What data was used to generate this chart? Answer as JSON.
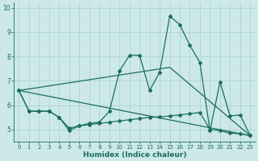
{
  "xlabel": "Humidex (Indice chaleur)",
  "xlim": [
    -0.5,
    23.5
  ],
  "ylim": [
    4.5,
    10.2
  ],
  "yticks": [
    5,
    6,
    7,
    8,
    9,
    10
  ],
  "xticks": [
    0,
    1,
    2,
    3,
    4,
    5,
    6,
    7,
    8,
    9,
    10,
    11,
    12,
    13,
    14,
    15,
    16,
    17,
    18,
    19,
    20,
    21,
    22,
    23
  ],
  "bg_color": "#cce8e8",
  "line_color": "#1a6e64",
  "grid_color": "#aacfcf",
  "line1_x": [
    0,
    1,
    2,
    3,
    4,
    5,
    6,
    7,
    8,
    9,
    10,
    11,
    12,
    13,
    14,
    15,
    16,
    17,
    18,
    19,
    20,
    21,
    22,
    23
  ],
  "line1_y": [
    6.6,
    5.75,
    5.75,
    5.75,
    5.5,
    4.95,
    5.15,
    5.25,
    5.3,
    5.75,
    7.4,
    8.05,
    8.05,
    6.6,
    7.35,
    9.65,
    9.3,
    8.45,
    7.75,
    4.95,
    6.95,
    5.55,
    5.6,
    4.75
  ],
  "line2_x": [
    0,
    1,
    2,
    3,
    4,
    5,
    6,
    7,
    8,
    9,
    10,
    11,
    12,
    13,
    14,
    15,
    16,
    17,
    18,
    19,
    20,
    21,
    22,
    23
  ],
  "line2_y": [
    6.6,
    5.75,
    5.75,
    5.75,
    5.5,
    5.05,
    5.15,
    5.2,
    5.25,
    5.3,
    5.35,
    5.4,
    5.45,
    5.5,
    5.52,
    5.55,
    5.6,
    5.65,
    5.7,
    5.0,
    4.95,
    4.85,
    4.82,
    4.75
  ],
  "line3_x": [
    0,
    23
  ],
  "line3_y": [
    6.6,
    4.75
  ],
  "line4_x": [
    0,
    15,
    23
  ],
  "line4_y": [
    6.6,
    7.55,
    4.75
  ]
}
